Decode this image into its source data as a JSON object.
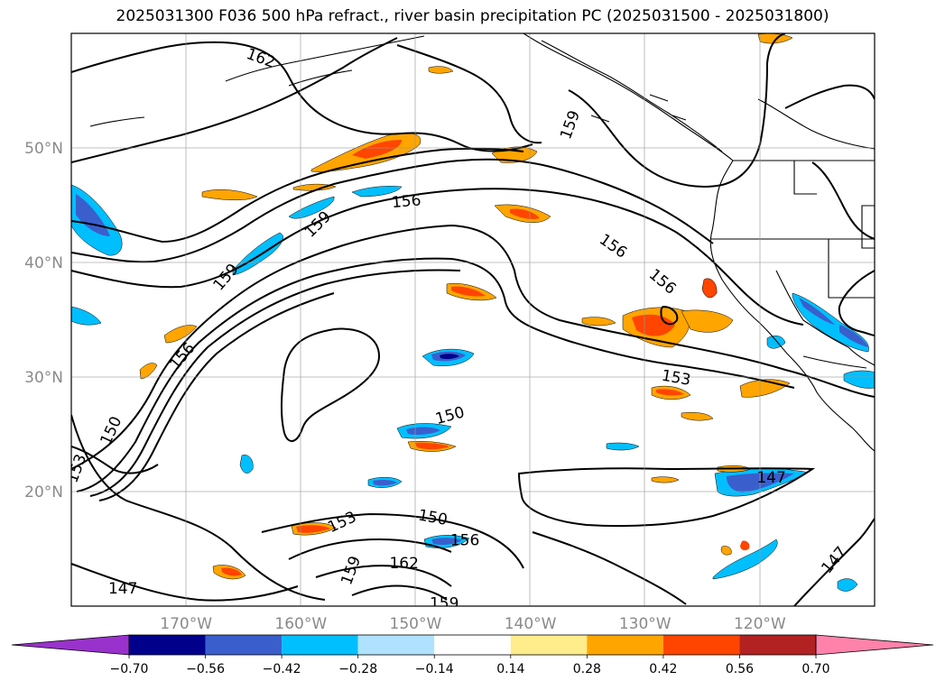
{
  "title": "2025031300 F036 500 hPa refract., river basin precipitation PC (2025031500 - 2025031800)",
  "map": {
    "lon_range": [
      -180,
      -110
    ],
    "lat_range": [
      10,
      60
    ],
    "lon_ticks": [
      {
        "lon": -170,
        "label": "170°W"
      },
      {
        "lon": -160,
        "label": "160°W"
      },
      {
        "lon": -150,
        "label": "150°W"
      },
      {
        "lon": -140,
        "label": "140°W"
      },
      {
        "lon": -130,
        "label": "130°W"
      },
      {
        "lon": -120,
        "label": "120°W"
      }
    ],
    "lat_ticks": [
      {
        "lat": 50,
        "label": "50°N"
      },
      {
        "lat": 40,
        "label": "40°N"
      },
      {
        "lat": 30,
        "label": "30°N"
      },
      {
        "lat": 20,
        "label": "20°N"
      }
    ],
    "grid": true
  },
  "contour_labels": [
    {
      "text": "162",
      "lon": -163.5,
      "lat": 57.8,
      "rot": 20
    },
    {
      "text": "159",
      "lon": -136.5,
      "lat": 52.0,
      "rot": -70
    },
    {
      "text": "159",
      "lon": -158.5,
      "lat": 43.3,
      "rot": -45
    },
    {
      "text": "159",
      "lon": -166.5,
      "lat": 38.7,
      "rot": -50
    },
    {
      "text": "156",
      "lon": -150.8,
      "lat": 45.3,
      "rot": -5
    },
    {
      "text": "156",
      "lon": -132.8,
      "lat": 41.4,
      "rot": 35
    },
    {
      "text": "156",
      "lon": -128.5,
      "lat": 38.3,
      "rot": 40
    },
    {
      "text": "156",
      "lon": -170.3,
      "lat": 31.8,
      "rot": -50
    },
    {
      "text": "153",
      "lon": -127.3,
      "lat": 29.9,
      "rot": 10
    },
    {
      "text": "150",
      "lon": -147.0,
      "lat": 26.6,
      "rot": -15
    },
    {
      "text": "150",
      "lon": -176.5,
      "lat": 25.3,
      "rot": -65
    },
    {
      "text": "153",
      "lon": -179.5,
      "lat": 22.0,
      "rot": -70
    },
    {
      "text": "147",
      "lon": -119.0,
      "lat": 21.2,
      "rot": 0
    },
    {
      "text": "150",
      "lon": -148.5,
      "lat": 17.7,
      "rot": 10
    },
    {
      "text": "153",
      "lon": -156.4,
      "lat": 17.3,
      "rot": -25
    },
    {
      "text": "156",
      "lon": -145.7,
      "lat": 15.7,
      "rot": 0
    },
    {
      "text": "159",
      "lon": -155.6,
      "lat": 13.1,
      "rot": -70
    },
    {
      "text": "162",
      "lon": -151.0,
      "lat": 13.7,
      "rot": 0
    },
    {
      "text": "159",
      "lon": -147.5,
      "lat": 10.2,
      "rot": 0
    },
    {
      "text": "147",
      "lon": -175.5,
      "lat": 11.5,
      "rot": 0
    },
    {
      "text": "147",
      "lon": -113.5,
      "lat": 14.0,
      "rot": -50
    }
  ],
  "colorbar": {
    "levels": [
      -0.7,
      -0.56,
      -0.42,
      -0.28,
      -0.14,
      0.14,
      0.28,
      0.42,
      0.56,
      0.7
    ],
    "tick_labels": [
      "−0.70",
      "−0.56",
      "−0.42",
      "−0.28",
      "−0.14",
      "0.14",
      "0.28",
      "0.42",
      "0.56",
      "0.70"
    ],
    "colors": [
      "#9932cc",
      "#00008b",
      "#3a5fcd",
      "#00bfff",
      "#b0e2ff",
      "#ffffff",
      "#ffec8b",
      "#ffa500",
      "#ff4500",
      "#b22222",
      "#ff82ab"
    ],
    "extend": "both"
  }
}
